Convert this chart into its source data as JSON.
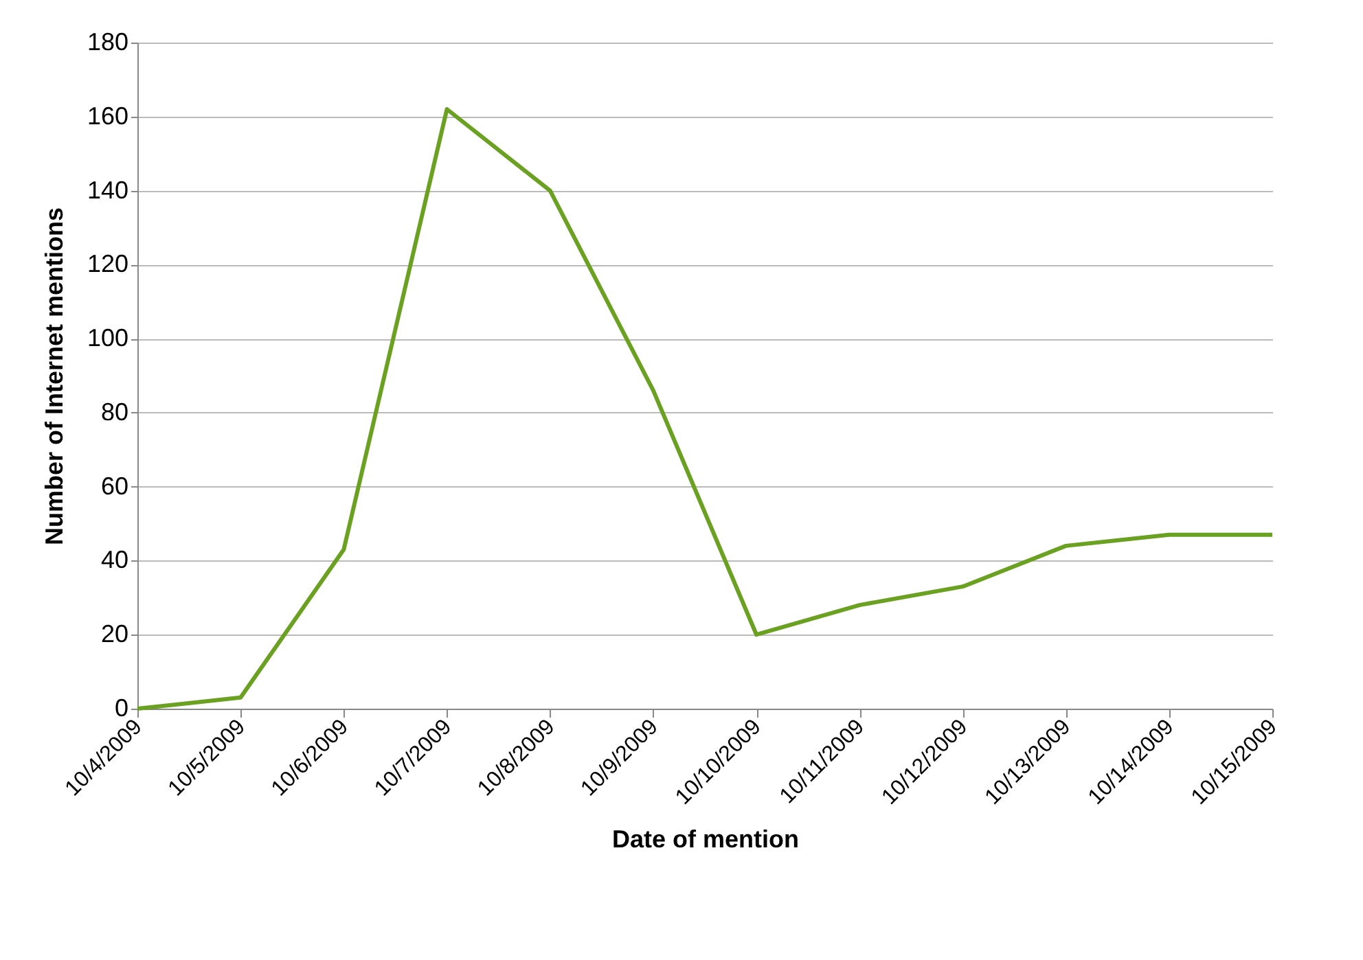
{
  "chart_data": {
    "type": "line",
    "xlabel": "Date of mention",
    "ylabel": "Number of Internet mentions",
    "categories": [
      "10/4/2009",
      "10/5/2009",
      "10/6/2009",
      "10/7/2009",
      "10/8/2009",
      "10/9/2009",
      "10/10/2009",
      "10/11/2009",
      "10/12/2009",
      "10/13/2009",
      "10/14/2009",
      "10/15/2009"
    ],
    "series": [
      {
        "color": "#6aa121",
        "values": [
          0,
          3,
          43,
          162,
          140,
          86,
          20,
          28,
          33,
          44,
          47,
          47
        ]
      }
    ],
    "ylim": [
      0,
      180
    ],
    "yticks": [
      0,
      20,
      40,
      60,
      80,
      100,
      120,
      140,
      160,
      180
    ],
    "grid": "y",
    "legend": false,
    "marker": "none",
    "line_style": "solid"
  }
}
